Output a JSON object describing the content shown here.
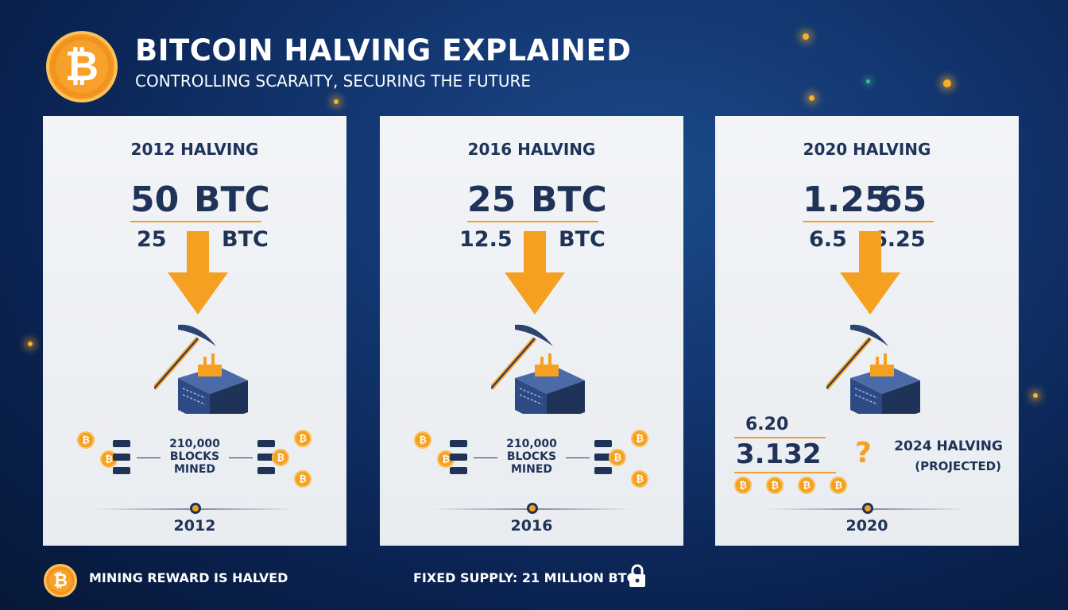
{
  "header": {
    "title": "BITCOIN HALVING EXPLAINED",
    "subtitle": "CONTROLLING SCARAITY, SECURING THE FUTURE",
    "logo_symbol": "₿"
  },
  "colors": {
    "accent": "#f5a020",
    "text": "#1f3358",
    "card": "#eef0f3"
  },
  "cards": [
    {
      "title": "2012 HALVING",
      "big_left": "50",
      "big_right": "BTC",
      "small_left": "25",
      "small_right": "BTC",
      "blocks_label": "210,000 BLOCKS MINED",
      "year": "2012"
    },
    {
      "title": "2016 HALVING",
      "big_left": "25",
      "big_right": "BTC",
      "small_left": "12.5",
      "small_right": "BTC",
      "blocks_label": "210,000 BLOCKS MINED",
      "year": "2016"
    },
    {
      "title": "2020 HALVING",
      "big_left": "1.25",
      "big_right": "65",
      "small_left": "6.5",
      "small_right": "6.25",
      "year": "2020",
      "projection": {
        "value_top": "6.20",
        "value_main": "3.132",
        "question": "?",
        "label": "2024 HALVING",
        "sublabel": "(PROJECTED)"
      }
    }
  ],
  "footer": {
    "left": "MINING REWARD IS HALVED",
    "right": "FIXED SUPPLY: 21 MILLION BTC",
    "lock_icon": "lock-icon"
  }
}
